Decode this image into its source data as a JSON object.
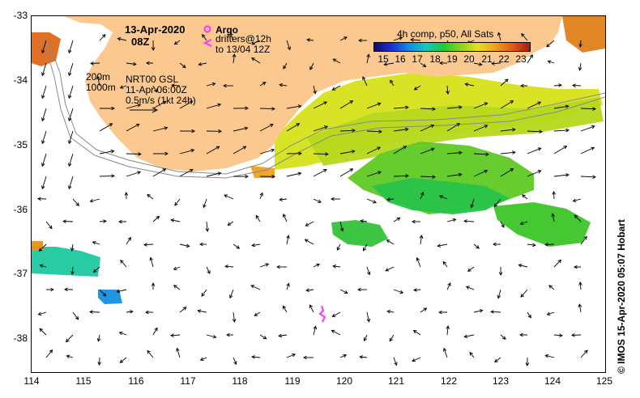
{
  "header": {
    "date": "13-Apr-2020",
    "time": "08Z",
    "argo_label": "Argo",
    "drifters_line1": "drifters@12h",
    "drifters_line2": "to 13/04 12Z"
  },
  "isobaths": {
    "shallow": "200m",
    "deep": "1000m"
  },
  "currents": {
    "source": "NRT00 GSL",
    "date": "11-Apr 06:00Z",
    "scale_label": "0.5m/s (1kt 24h)"
  },
  "colorbar": {
    "title": "4h comp, p50, All Sats",
    "ticks": [
      "15",
      "16",
      "17",
      "18",
      "19",
      "20",
      "21",
      "22",
      "23"
    ],
    "min": 14.5,
    "max": 23.5
  },
  "axes": {
    "lon_ticks": [
      "114",
      "115",
      "116",
      "117",
      "118",
      "119",
      "120",
      "121",
      "122",
      "123",
      "124",
      "125"
    ],
    "lat_ticks": [
      "-33",
      "-34",
      "-35",
      "-36",
      "-37",
      "-38"
    ],
    "lon_range": [
      114,
      125
    ],
    "lat_range": [
      -38.5,
      -33
    ]
  },
  "credit": "© IMOS 15-Apr-2020 05:07 Hobart",
  "colors": {
    "land": "#fbc98f",
    "argo": "#ff33ff",
    "drifter": "#ff33ff",
    "isobath": "#888888"
  }
}
